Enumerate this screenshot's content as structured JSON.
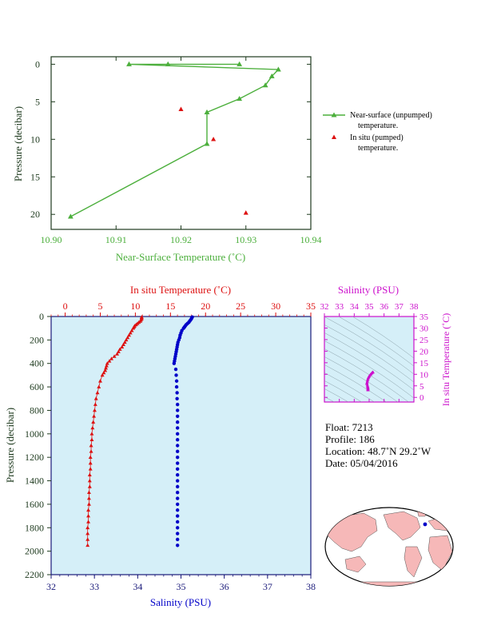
{
  "colors": {
    "green": "#4caf3c",
    "red": "#dd1111",
    "blue": "#0000c8",
    "magenta": "#cc11cc",
    "navy": "#1a1a7a",
    "panel_bg": "#d5eff8",
    "axis_dark": "#1e3a1e"
  },
  "top_chart": {
    "type": "line",
    "xlabel": "Near-Surface Temperature (˚C)",
    "ylabel": "Pressure (decibar)",
    "xlim": [
      10.9,
      10.94
    ],
    "ylim": [
      22,
      -1
    ],
    "xticks": [
      "10.90",
      "10.91",
      "10.92",
      "10.93",
      "10.94"
    ],
    "yticks": [
      "0",
      "5",
      "10",
      "15",
      "20"
    ],
    "legend": {
      "unpumped_1": "Near-surface (unpumped)",
      "unpumped_2": "temperature.",
      "pumped_1": "In situ (pumped)",
      "pumped_2": "temperature."
    },
    "chart_data": {
      "type": "line",
      "series": [
        {
          "name": "Near-surface (unpumped) temperature.",
          "x": [
            10.929,
            10.918,
            10.912,
            10.935,
            10.934,
            10.933,
            10.929,
            10.924,
            10.924,
            10.903
          ],
          "y": [
            0.0,
            0.0,
            0.0,
            0.7,
            1.6,
            2.8,
            4.6,
            6.4,
            10.6,
            20.3
          ]
        },
        {
          "name": "In situ (pumped) temperature.",
          "x": [
            10.92,
            10.925,
            10.93
          ],
          "y": [
            6.0,
            10.0,
            19.8
          ]
        }
      ]
    }
  },
  "profile_chart": {
    "type": "scatter",
    "top_label": "In situ Temperature (˚C)",
    "bottom_label": "Salinity (PSU)",
    "ylabel": "Pressure (decibar)",
    "temp_ticks": [
      "0",
      "5",
      "10",
      "15",
      "20",
      "25",
      "30",
      "35"
    ],
    "sal_ticks": [
      "32",
      "33",
      "34",
      "35",
      "36",
      "37",
      "38"
    ],
    "p_ticks": [
      "0",
      "200",
      "400",
      "600",
      "800",
      "1000",
      "1200",
      "1400",
      "1600",
      "1800",
      "2000",
      "2200"
    ],
    "temp_lim": [
      -2,
      35
    ],
    "sal_lim": [
      32,
      38
    ],
    "p_lim": [
      0,
      2200
    ],
    "chart_data": {
      "type": "scatter",
      "series": [
        {
          "name": "In situ Temperature (˚C)",
          "pressure": [
            5,
            10,
            20,
            30,
            40,
            50,
            60,
            70,
            80,
            90,
            100,
            120,
            140,
            160,
            180,
            200,
            220,
            240,
            260,
            280,
            300,
            320,
            340,
            360,
            380,
            400,
            420,
            440,
            460,
            480,
            500,
            550,
            600,
            650,
            700,
            750,
            800,
            850,
            900,
            950,
            1000,
            1050,
            1100,
            1150,
            1200,
            1250,
            1300,
            1350,
            1400,
            1450,
            1500,
            1550,
            1600,
            1650,
            1700,
            1750,
            1800,
            1850,
            1900,
            1950
          ],
          "values": [
            10.9,
            10.9,
            10.9,
            10.8,
            10.7,
            10.5,
            10.3,
            10.1,
            9.9,
            9.8,
            9.7,
            9.5,
            9.3,
            9.1,
            8.9,
            8.7,
            8.5,
            8.3,
            8.1,
            7.8,
            7.6,
            7.4,
            7.0,
            6.6,
            6.3,
            6.0,
            5.9,
            5.8,
            5.7,
            5.5,
            5.3,
            5.0,
            4.8,
            4.6,
            4.4,
            4.3,
            4.2,
            4.1,
            4.0,
            3.9,
            3.8,
            3.8,
            3.7,
            3.7,
            3.6,
            3.6,
            3.6,
            3.5,
            3.5,
            3.5,
            3.4,
            3.4,
            3.4,
            3.3,
            3.3,
            3.3,
            3.2,
            3.2,
            3.2,
            3.2
          ]
        },
        {
          "name": "Salinity (PSU)",
          "pressure": [
            5,
            10,
            20,
            30,
            40,
            50,
            60,
            70,
            80,
            90,
            100,
            120,
            140,
            160,
            180,
            200,
            220,
            240,
            260,
            280,
            300,
            320,
            340,
            360,
            380,
            400,
            450,
            500,
            550,
            600,
            650,
            700,
            750,
            800,
            850,
            900,
            950,
            1000,
            1050,
            1100,
            1150,
            1200,
            1250,
            1300,
            1350,
            1400,
            1450,
            1500,
            1550,
            1600,
            1650,
            1700,
            1750,
            1800,
            1850,
            1900,
            1950
          ],
          "values": [
            35.26,
            35.25,
            35.24,
            35.22,
            35.2,
            35.18,
            35.15,
            35.12,
            35.1,
            35.08,
            35.06,
            35.02,
            35.0,
            34.98,
            34.97,
            34.95,
            34.93,
            34.92,
            34.91,
            34.9,
            34.89,
            34.88,
            34.87,
            34.86,
            34.85,
            34.84,
            34.88,
            34.89,
            34.9,
            34.9,
            34.91,
            34.91,
            34.92,
            34.92,
            34.92,
            34.92,
            34.92,
            34.92,
            34.92,
            34.92,
            34.92,
            34.92,
            34.92,
            34.92,
            34.92,
            34.92,
            34.92,
            34.92,
            34.92,
            34.92,
            34.92,
            34.92,
            34.92,
            34.92,
            34.92,
            34.92,
            34.92
          ]
        }
      ]
    }
  },
  "ts_chart": {
    "type": "scatter",
    "top_label": "Salinity (PSU)",
    "right_label": "In situ Temperature (˚C)",
    "sal_ticks": [
      "32",
      "33",
      "34",
      "35",
      "36",
      "37",
      "38"
    ],
    "temp_ticks": [
      "0",
      "5",
      "10",
      "15",
      "20",
      "25",
      "30",
      "35"
    ],
    "sal_lim": [
      32,
      38
    ],
    "temp_lim": [
      -2,
      35
    ],
    "chart_data": {
      "type": "scatter",
      "x": [
        35.26,
        35.22,
        35.18,
        35.12,
        35.08,
        35.02,
        34.98,
        34.95,
        34.92,
        34.9,
        34.88,
        34.86,
        34.84,
        34.88,
        34.9,
        34.91,
        34.92,
        34.92,
        34.92,
        34.92,
        34.92
      ],
      "y": [
        10.9,
        10.8,
        10.5,
        10.1,
        9.8,
        9.3,
        8.9,
        8.5,
        8.1,
        7.6,
        7.0,
        6.3,
        6.0,
        5.3,
        4.8,
        4.4,
        4.1,
        3.8,
        3.6,
        3.4,
        3.2
      ]
    }
  },
  "info": {
    "float": "Float:  7213",
    "profile": "Profile:  186",
    "location": "Location:  48.7˚N  29.2˚W",
    "date": "Date:  05/04/2016"
  },
  "map": {
    "ocean": "#ffffff",
    "land": "#f6b8b8",
    "marker": "#0000c8"
  }
}
